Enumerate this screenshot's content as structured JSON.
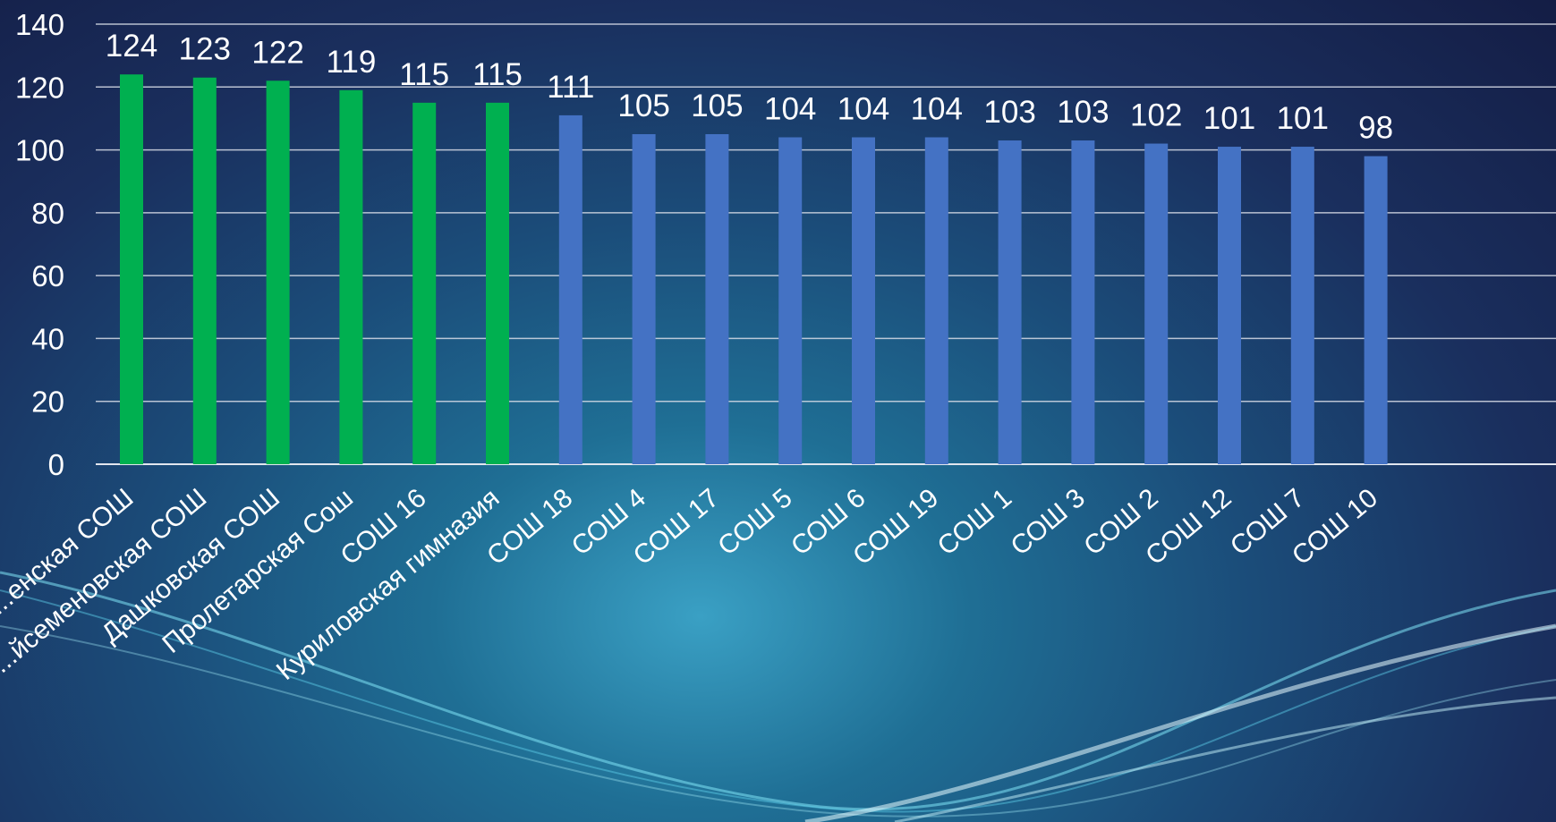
{
  "chart_data": {
    "type": "bar",
    "categories": [
      "...енская СОШ",
      "...йсеменовская СОШ",
      "Дашковская СОШ",
      "Пролетарская Сош",
      "СОШ 16",
      "Куриловская гимназия",
      "СОШ 18",
      "СОШ 4",
      "СОШ 17",
      "СОШ 5",
      "СОШ 6",
      "СОШ 19",
      "СОШ 1",
      "СОШ 3",
      "СОШ 2",
      "СОШ 12",
      "СОШ 7",
      "СОШ 10"
    ],
    "values": [
      124,
      123,
      122,
      119,
      115,
      115,
      111,
      105,
      105,
      104,
      104,
      104,
      103,
      103,
      102,
      101,
      101,
      98
    ],
    "colors": [
      "#00b050",
      "#00b050",
      "#00b050",
      "#00b050",
      "#00b050",
      "#00b050",
      "#4472c4",
      "#4472c4",
      "#4472c4",
      "#4472c4",
      "#4472c4",
      "#4472c4",
      "#4472c4",
      "#4472c4",
      "#4472c4",
      "#4472c4",
      "#4472c4",
      "#4472c4"
    ],
    "title": "",
    "xlabel": "",
    "ylabel": "",
    "ylim": [
      0,
      140
    ],
    "yticks": [
      0,
      20,
      40,
      60,
      80,
      100,
      120,
      140
    ],
    "grid": true,
    "legend": "none",
    "data_labels": true
  }
}
